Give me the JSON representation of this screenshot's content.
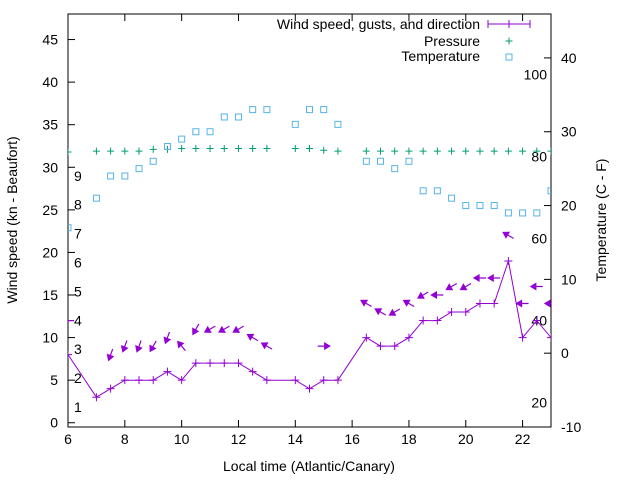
{
  "chart_data": {
    "type": "line",
    "title": "",
    "xlabel": "Local time (Atlantic/Canary)",
    "ylabel": "Wind speed (kn - Beaufort)",
    "y2label": "Temperature (C - F)",
    "xlim": [
      6,
      23
    ],
    "ylim": [
      -0.5,
      48
    ],
    "y2lim": [
      -10,
      45.95
    ],
    "x_ticks": [
      "6",
      "8",
      "10",
      "12",
      "14",
      "16",
      "18",
      "20",
      "22"
    ],
    "y_ticks": [
      "0",
      "5",
      "10",
      "15",
      "20",
      "25",
      "30",
      "35",
      "40",
      "45"
    ],
    "y2_ticks": [
      "-10",
      "0",
      "10",
      "20",
      "30",
      "40"
    ],
    "beaufort_labels": [
      "1",
      "2",
      "3",
      "4",
      "5",
      "6",
      "7",
      "8",
      "9"
    ],
    "beaufort_values": [
      1,
      2,
      3,
      4,
      5,
      6,
      7,
      8,
      9
    ],
    "fahrenheit_labels": [
      "20",
      "40",
      "60",
      "80",
      "100"
    ],
    "fahrenheit_values": [
      20,
      40,
      60,
      80,
      100
    ],
    "legend": {
      "position": "top-right",
      "entries": [
        "Wind speed, gusts, and direction",
        "Pressure",
        "Temperature"
      ]
    },
    "colors": {
      "wind": "#9400d3",
      "pressure": "#009e73",
      "temperature": "#56b4e9"
    },
    "series": [
      {
        "name": "Wind speed, gusts, and direction",
        "x": [
          6,
          7,
          7.5,
          8,
          8.5,
          9,
          9.5,
          10,
          10.5,
          11,
          11.5,
          12,
          12.5,
          13,
          14,
          14.5,
          15,
          15.5,
          16.5,
          17,
          17.5,
          18,
          18.5,
          19,
          19.5,
          20,
          20.5,
          21,
          21.5,
          22,
          22.5,
          23
        ],
        "values": [
          8,
          3,
          4,
          5,
          5,
          5,
          6,
          5,
          7,
          7,
          7,
          7,
          6,
          5,
          5,
          4,
          5,
          5,
          10,
          9,
          9,
          10,
          12,
          12,
          13,
          13,
          14,
          14,
          19,
          10,
          12,
          10
        ],
        "gusts_x": [
          6,
          7.5,
          8,
          8.5,
          9,
          9.5,
          10,
          10.5,
          11,
          11.5,
          12,
          12.5,
          13,
          15,
          16.5,
          17,
          17.5,
          18,
          18.5,
          19,
          19.5,
          20,
          20.5,
          21,
          21.5,
          22,
          22.5,
          23
        ],
        "gusts": [
          12,
          8,
          9,
          9,
          9,
          10,
          9,
          11,
          11,
          11,
          11,
          10,
          9,
          9,
          14,
          13,
          13,
          14,
          15,
          15,
          16,
          16,
          17,
          17,
          22,
          14,
          16,
          14
        ],
        "direction_deg": [
          270,
          200,
          200,
          200,
          210,
          200,
          320,
          210,
          240,
          240,
          240,
          300,
          300,
          90,
          300,
          300,
          240,
          300,
          240,
          270,
          240,
          240,
          270,
          270,
          300,
          270,
          270,
          270
        ]
      },
      {
        "name": "Pressure",
        "x": [
          6,
          7,
          7.5,
          8,
          8.5,
          9,
          9.5,
          10,
          10.5,
          11,
          11.5,
          12,
          12.5,
          13,
          14,
          14.5,
          15,
          15.5,
          16.5,
          17,
          17.5,
          18,
          18.5,
          19,
          19.5,
          20,
          20.5,
          21,
          21.5,
          22,
          22.5,
          23
        ],
        "values": [
          31.8,
          31.9,
          31.9,
          31.9,
          31.9,
          32.1,
          32.1,
          32.2,
          32.2,
          32.2,
          32.2,
          32.2,
          32.2,
          32.2,
          32.2,
          32.2,
          32.0,
          31.9,
          31.9,
          31.9,
          31.9,
          31.9,
          31.9,
          31.9,
          31.9,
          31.9,
          31.9,
          31.9,
          31.9,
          31.9,
          31.9,
          31.9
        ]
      },
      {
        "name": "Temperature",
        "x": [
          6,
          7,
          7.5,
          8,
          8.5,
          9,
          9.5,
          10,
          10.5,
          11,
          11.5,
          12,
          12.5,
          13,
          14,
          14.5,
          15,
          15.5,
          16.5,
          17,
          17.5,
          18,
          18.5,
          19,
          19.5,
          20,
          20.5,
          21,
          21.5,
          22,
          22.5,
          23
        ],
        "values": [
          17,
          21,
          24,
          24,
          25,
          26,
          28,
          29,
          30,
          30,
          32,
          32,
          33,
          33,
          31,
          33,
          33,
          31,
          26,
          26,
          25,
          26,
          22,
          22,
          21,
          20,
          20,
          20,
          19,
          19,
          19,
          22
        ]
      }
    ]
  }
}
